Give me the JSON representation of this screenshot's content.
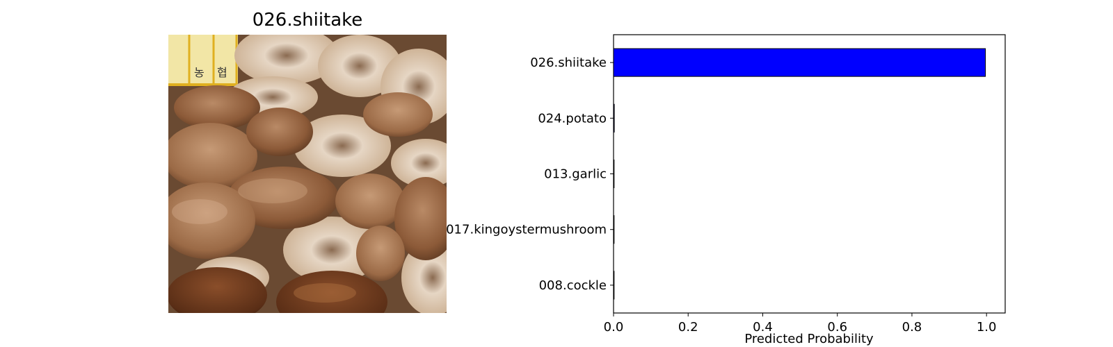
{
  "image_panel": {
    "title": "026.shiitake",
    "photo_icon": "shiitake-mushroom-pile-photo",
    "label_glyphs": [
      "농",
      "협"
    ]
  },
  "chart_data": {
    "type": "bar",
    "orientation": "horizontal",
    "categories": [
      "026.shiitake",
      "024.potato",
      "013.garlic",
      "017.kingoystermushroom",
      "008.cockle"
    ],
    "values": [
      0.997,
      0.002,
      0.0005,
      0.0003,
      0.0002
    ],
    "xlabel": "Predicted Probability",
    "ylabel": "",
    "xlim": [
      0,
      1.05
    ],
    "xticks": [
      0.0,
      0.2,
      0.4,
      0.6,
      0.8,
      1.0
    ],
    "xtick_labels": [
      "0.0",
      "0.2",
      "0.4",
      "0.6",
      "0.8",
      "1.0"
    ],
    "grid": false,
    "bar_color": "#0000ff",
    "edge_color": "#000000"
  }
}
